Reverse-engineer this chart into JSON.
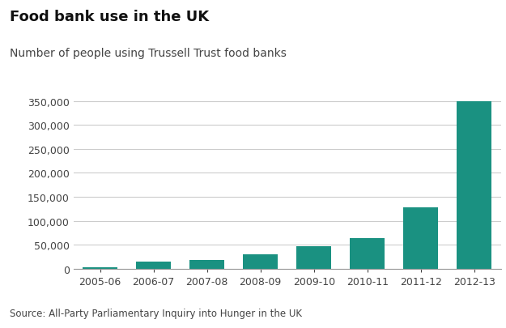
{
  "title": "Food bank use in the UK",
  "subtitle": "Number of people using Trussell Trust food banks",
  "source": "Source: All-Party Parliamentary Inquiry into Hunger in the UK",
  "categories": [
    "2005-06",
    "2006-07",
    "2007-08",
    "2008-09",
    "2009-10",
    "2010-11",
    "2011-12",
    "2012-13"
  ],
  "values": [
    2814,
    14319,
    17837,
    30659,
    46455,
    64826,
    128697,
    350000
  ],
  "bar_color": "#1a9181",
  "background_color": "#ffffff",
  "ylim": [
    0,
    370000
  ],
  "yticks": [
    0,
    50000,
    100000,
    150000,
    200000,
    250000,
    300000,
    350000
  ],
  "title_fontsize": 13,
  "subtitle_fontsize": 10,
  "source_fontsize": 8.5,
  "tick_fontsize": 9
}
